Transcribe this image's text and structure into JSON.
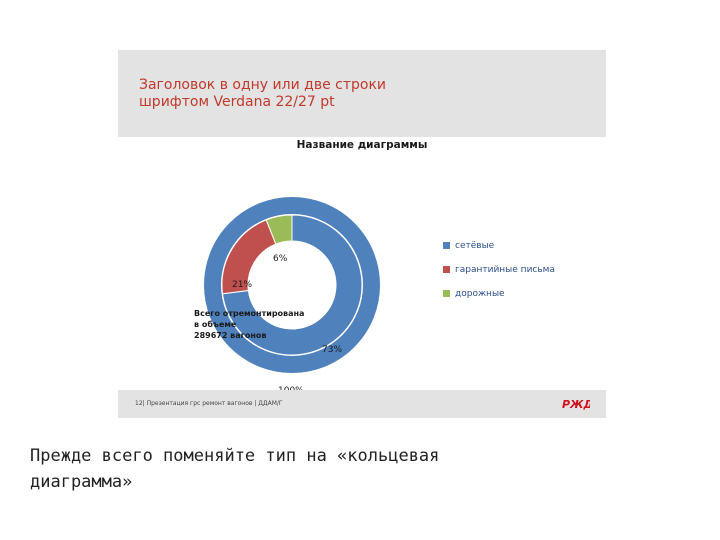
{
  "slide": {
    "title": "Заголовок в одну или две строки\nшрифтом Verdana 22/27 pt",
    "footer_text": "12| Презентация грс ремонт вагонов | ДДАМ/Г",
    "logo_alt": "РЖД"
  },
  "chart_data": {
    "type": "pie",
    "title": "Название диаграммы",
    "categories": [
      "сетёвые",
      "гарантийные письма",
      "дорожные"
    ],
    "values": [
      73,
      21,
      6
    ],
    "data_labels": [
      "73%",
      "21%",
      "6%"
    ],
    "outer_ring_label": "100%",
    "colors": [
      "#4f81bd",
      "#c0504d",
      "#9bbb59"
    ],
    "legend_placement": "right",
    "annotation": "Всего отремонтирована\nв объеме\n289672 вагонов"
  },
  "caption": "Прежде всего поменяйте тип на «кольцевая\nдиаграмма»"
}
